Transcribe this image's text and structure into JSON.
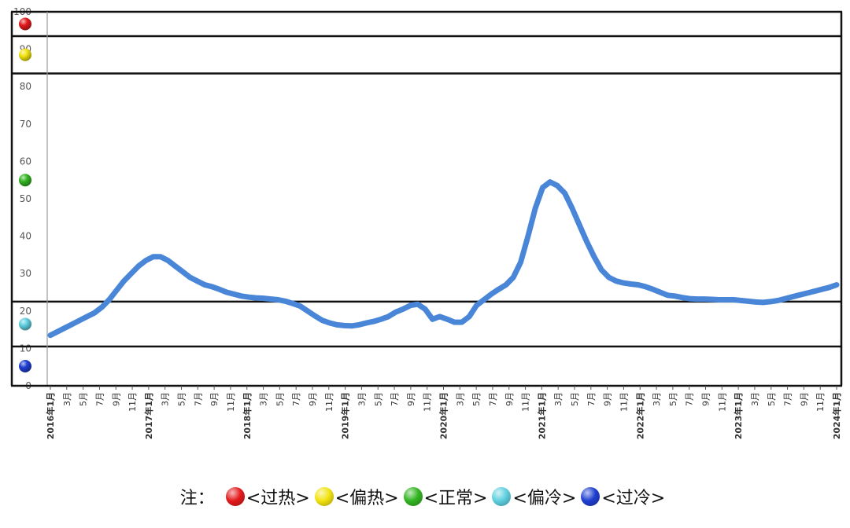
{
  "chart_data": {
    "type": "line",
    "ylim": [
      0,
      100
    ],
    "y_ticks": [
      0,
      10,
      20,
      30,
      40,
      50,
      60,
      70,
      80,
      90,
      100
    ],
    "zones": [
      {
        "name": "过热",
        "from": 93.5,
        "to": 100,
        "color": "#e41a1c"
      },
      {
        "name": "偏热",
        "from": 83.5,
        "to": 93.5,
        "color": "#f2e311"
      },
      {
        "name": "正常",
        "from": 22.5,
        "to": 83.5,
        "color": "#33b522"
      },
      {
        "name": "偏冷",
        "from": 10.5,
        "to": 22.5,
        "color": "#5fd0e0"
      },
      {
        "name": "过冷",
        "from": 0,
        "to": 10.5,
        "color": "#1f3fd0"
      }
    ],
    "x_labels": [
      "2016年1月",
      "3月",
      "5月",
      "7月",
      "9月",
      "11月",
      "2017年1月",
      "3月",
      "5月",
      "7月",
      "9月",
      "11月",
      "2018年1月",
      "3月",
      "5月",
      "7月",
      "9月",
      "11月",
      "2019年1月",
      "3月",
      "5月",
      "7月",
      "9月",
      "11月",
      "2020年1月",
      "3月",
      "5月",
      "7月",
      "9月",
      "11月",
      "2021年1月",
      "3月",
      "5月",
      "7月",
      "9月",
      "11月",
      "2022年1月",
      "3月",
      "5月",
      "7月",
      "9月",
      "11月",
      "2023年1月",
      "3月",
      "5月",
      "7月",
      "9月",
      "11月",
      "2024年1月"
    ],
    "series": [
      {
        "color": "#4a86d8",
        "values": [
          13.5,
          14.5,
          15.5,
          16.5,
          17.5,
          18.5,
          19.5,
          21.0,
          23.0,
          25.5,
          28.0,
          30.0,
          32.0,
          33.5,
          34.5,
          34.5,
          33.5,
          32.0,
          30.5,
          29.0,
          28.0,
          27.0,
          26.5,
          25.8,
          25.0,
          24.5,
          24.0,
          23.7,
          23.5,
          23.4,
          23.2,
          23.0,
          22.6,
          22.0,
          21.3,
          20.0,
          18.7,
          17.5,
          16.8,
          16.3,
          16.1,
          16.0,
          16.3,
          16.8,
          17.2,
          17.8,
          18.5,
          19.7,
          20.5,
          21.5,
          21.8,
          20.5,
          17.8,
          18.5,
          17.8,
          17.0,
          17.0,
          18.5,
          21.5,
          23.0,
          24.5,
          25.8,
          27.0,
          29.0,
          33.0,
          40.0,
          47.5,
          53.0,
          54.5,
          53.5,
          51.5,
          47.5,
          43.0,
          38.5,
          34.5,
          31.0,
          29.0,
          28.0,
          27.5,
          27.2,
          27.0,
          26.5,
          25.8,
          25.0,
          24.2,
          24.0,
          23.6,
          23.3,
          23.2,
          23.2,
          23.1,
          23.0,
          23.0,
          23.0,
          22.8,
          22.6,
          22.4,
          22.3,
          22.5,
          22.8,
          23.3,
          23.8,
          24.3,
          24.8,
          25.3,
          25.8,
          26.3,
          27.0
        ]
      }
    ]
  },
  "legend": {
    "title": "注：",
    "items": [
      {
        "label": "<过热>",
        "color": "#e41a1c"
      },
      {
        "label": "<偏热>",
        "color": "#f2e311"
      },
      {
        "label": "<正常>",
        "color": "#33b522"
      },
      {
        "label": "<偏冷>",
        "color": "#5fd0e0"
      },
      {
        "label": "<过冷>",
        "color": "#1f3fd0"
      }
    ]
  }
}
